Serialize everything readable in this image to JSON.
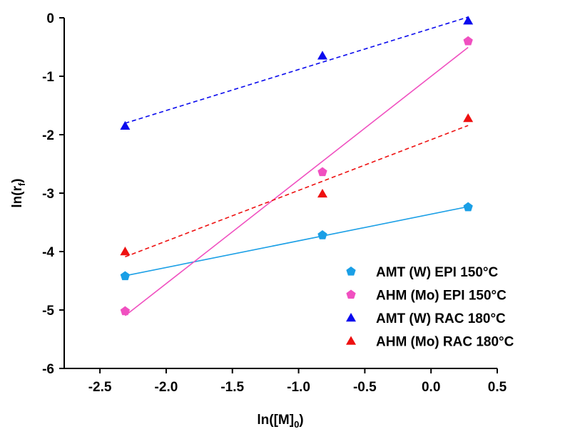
{
  "chart_data": {
    "type": "scatter",
    "xlabel": [
      "ln([M]",
      "0",
      ")"
    ],
    "ylabel": [
      "ln(r",
      "f",
      ")"
    ],
    "xlim": [
      -2.77,
      0.5
    ],
    "ylim": [
      -6,
      0
    ],
    "xticks": [
      {
        "value": -2.5,
        "label": "-2.5"
      },
      {
        "value": -2,
        "label": "-2.0"
      },
      {
        "value": -1.5,
        "label": "-1.5"
      },
      {
        "value": -1,
        "label": "-1.0"
      },
      {
        "value": -0.5,
        "label": "-0.5"
      },
      {
        "value": 0,
        "label": "0.0"
      },
      {
        "value": 0.5,
        "label": "0.5"
      }
    ],
    "yticks": [
      0,
      -1,
      -2,
      -3,
      -4,
      -5,
      -6
    ],
    "legend": "lower right",
    "fit": "linear",
    "series": [
      {
        "name": "AMT (W) EPI 150°C",
        "color": "#1a9fe6",
        "marker": "pentagon",
        "line_style": "solid",
        "x": [
          -2.31,
          -0.82,
          0.28
        ],
        "values": [
          -4.42,
          -3.72,
          -3.24
        ]
      },
      {
        "name": "AHM (Mo) EPI 150°C",
        "color": "#f050c0",
        "marker": "pentagon",
        "line_style": "solid",
        "x": [
          -2.31,
          -0.82,
          0.28
        ],
        "values": [
          -5.02,
          -2.64,
          -0.4
        ]
      },
      {
        "name": "AMT (W) RAC 180°C",
        "color": "#0a0aee",
        "marker": "triangle",
        "line_style": "dashed",
        "x": [
          -2.31,
          -0.82,
          0.28
        ],
        "values": [
          -1.85,
          -0.65,
          -0.05
        ]
      },
      {
        "name": "AHM (Mo) RAC 180°C",
        "color": "#ee1010",
        "marker": "triangle",
        "line_style": "dashed",
        "x": [
          -2.31,
          -0.82,
          0.28
        ],
        "values": [
          -4.0,
          -3.01,
          -1.72
        ]
      }
    ]
  }
}
